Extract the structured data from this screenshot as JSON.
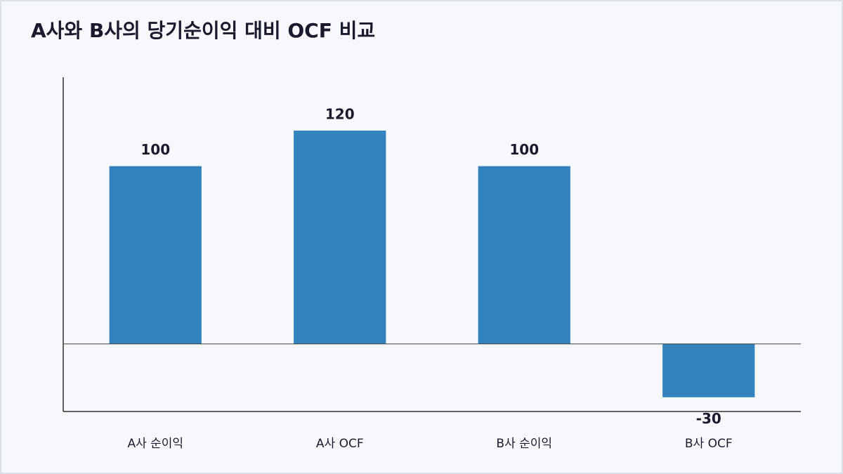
{
  "chart_data": {
    "type": "bar",
    "title": "A사와 B사의 당기순이익 대비 OCF 비교",
    "categories": [
      "A사 순이익",
      "A사 OCF",
      "B사 순이익",
      "B사 OCF"
    ],
    "values": [
      100,
      120,
      100,
      -30
    ],
    "color": "#3182bd",
    "ylim": [
      -38,
      150
    ]
  }
}
